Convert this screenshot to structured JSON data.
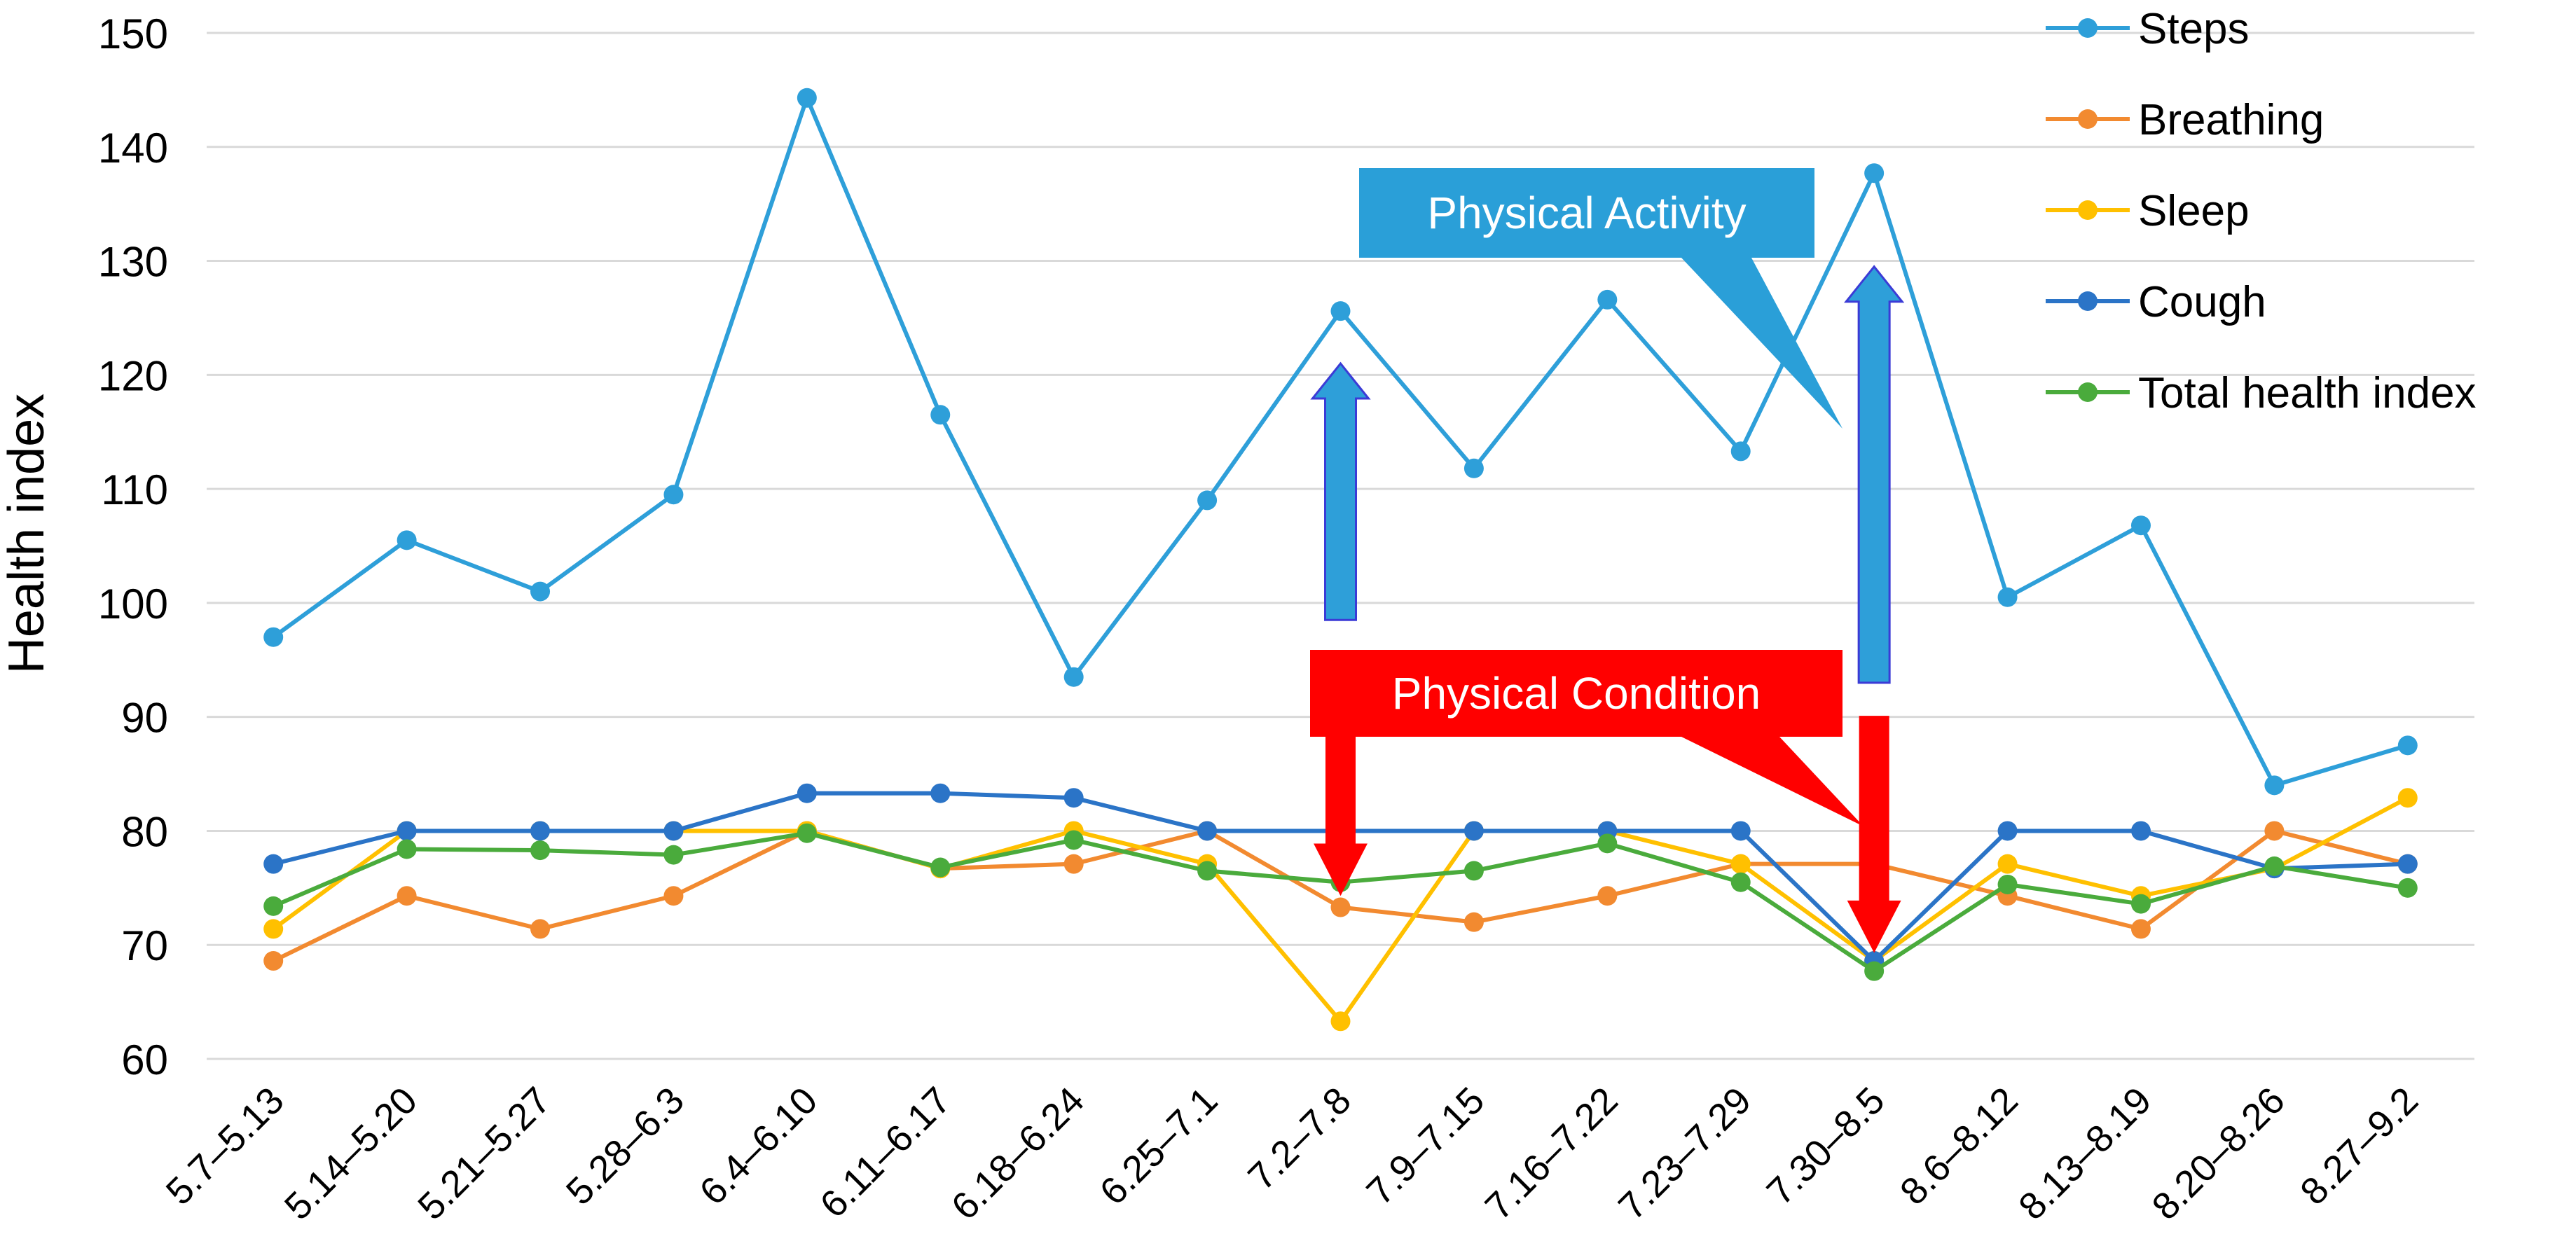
{
  "chart_data": {
    "type": "line",
    "title": "",
    "xlabel": "",
    "ylabel": "Health index",
    "ylim": [
      60,
      150
    ],
    "yticks": [
      60,
      70,
      80,
      90,
      100,
      110,
      120,
      130,
      140,
      150
    ],
    "grid": true,
    "legend_position": "top-right",
    "categories": [
      "5.7–5.13",
      "5.14–5.20",
      "5.21–5.27",
      "5.28–6.3",
      "6.4–6.10",
      "6.11–6.17",
      "6.18–6.24",
      "6.25–7.1",
      "7.2–7.8",
      "7.9–7.15",
      "7.16–7.22",
      "7.23–7.29",
      "7.30–8.5",
      "8.6–8.12",
      "8.13–8.19",
      "8.20–8.26",
      "8.27–9.2"
    ],
    "series": [
      {
        "name": "Steps",
        "color": "#2e9fd9",
        "values": [
          97,
          105.5,
          101,
          109.5,
          144.3,
          116.5,
          93.5,
          109,
          125.6,
          111.8,
          126.6,
          113.3,
          137.7,
          100.5,
          106.8,
          84,
          87.5
        ]
      },
      {
        "name": "Breathing",
        "color": "#f28a30",
        "values": [
          68.6,
          74.3,
          71.4,
          74.3,
          80,
          76.7,
          77.1,
          80,
          73.3,
          72,
          74.3,
          77.1,
          77.1,
          74.3,
          71.4,
          80,
          77.1
        ]
      },
      {
        "name": "Sleep",
        "color": "#ffc000",
        "values": [
          71.4,
          80,
          80,
          80,
          80,
          76.7,
          80,
          77.1,
          63.3,
          80,
          80,
          77.1,
          68.6,
          77.1,
          74.3,
          76.7,
          82.9
        ]
      },
      {
        "name": "Cough",
        "color": "#2b74c7",
        "values": [
          77.1,
          80,
          80,
          80,
          83.3,
          83.3,
          82.9,
          80,
          80,
          80,
          80,
          80,
          68.6,
          80,
          80,
          76.7,
          77.1
        ]
      },
      {
        "name": "Total health index",
        "color": "#4aab3c",
        "values": [
          73.4,
          78.4,
          78.3,
          77.9,
          79.8,
          76.8,
          79.2,
          76.5,
          75.5,
          76.5,
          78.9,
          75.5,
          67.7,
          75.3,
          73.6,
          76.9,
          75
        ]
      }
    ],
    "annotations": [
      {
        "id": "physical-activity",
        "text": "Physical Activity",
        "color": "#2a9fd8"
      },
      {
        "id": "physical-condition",
        "text": "Physical Condition",
        "color": "#ff0000"
      }
    ],
    "arrows": [
      {
        "category": "7.2–7.8",
        "direction": "up",
        "from": 98.5,
        "to": 121,
        "color": "#2e9fd9"
      },
      {
        "category": "7.30–8.5",
        "direction": "up",
        "from": 93,
        "to": 129.5,
        "color": "#2e9fd9"
      },
      {
        "category": "7.2–7.8",
        "direction": "down",
        "from": 89.5,
        "to": 74.5,
        "color": "#ff0000"
      },
      {
        "category": "7.30–8.5",
        "direction": "down",
        "from": 90,
        "to": 69.5,
        "color": "#ff0000"
      }
    ]
  }
}
